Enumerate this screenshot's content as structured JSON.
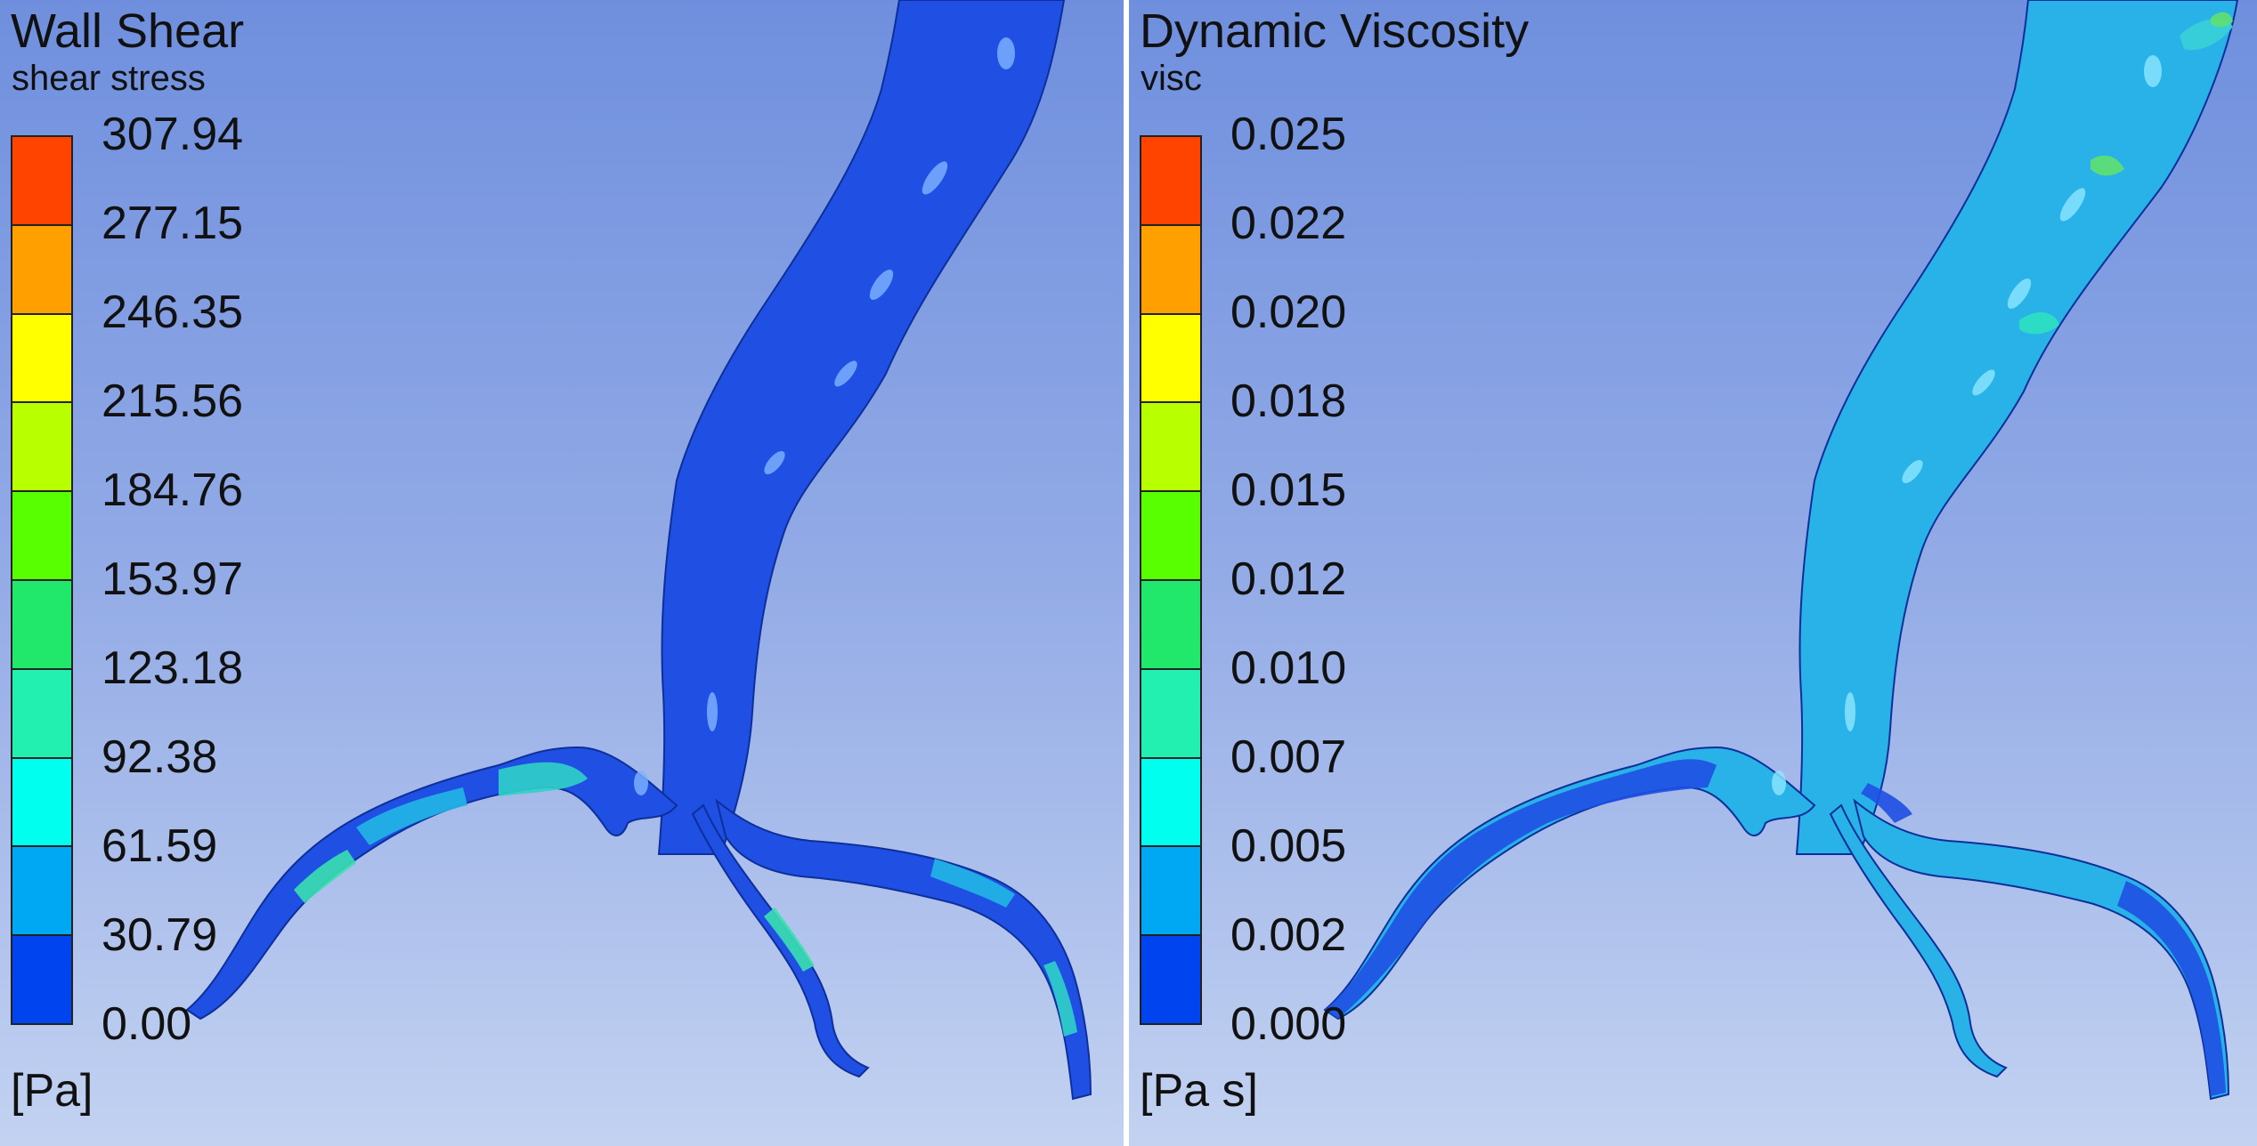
{
  "panels": [
    {
      "title": "Wall Shear",
      "subtitle": "shear stress",
      "unit": "[Pa]",
      "ticks": [
        "307.94",
        "277.15",
        "246.35",
        "215.56",
        "184.76",
        "153.97",
        "123.18",
        "92.38",
        "61.59",
        "30.79",
        "0.00"
      ],
      "body_color": "#1f4fe3",
      "highlight_color": "#7fb4ff",
      "patch_colors": [
        "#2fd2c8",
        "#21b6e4",
        "#3ae0b0"
      ]
    },
    {
      "title": "Dynamic Viscosity",
      "subtitle": "visc",
      "unit": "[Pa s]",
      "ticks": [
        "0.025",
        "0.022",
        "0.020",
        "0.018",
        "0.015",
        "0.012",
        "0.010",
        "0.007",
        "0.005",
        "0.002",
        "0.000"
      ],
      "body_color": "#28b2e8",
      "highlight_color": "#8fe6ff",
      "patch_colors": [
        "#38d0d8",
        "#2ee0c0",
        "#5fe070",
        "#1f4fe3"
      ]
    }
  ],
  "colormap": [
    "#ff4400",
    "#ffa000",
    "#ffff00",
    "#b8ff00",
    "#57ff00",
    "#21e86a",
    "#22f0b0",
    "#00ffee",
    "#00a8f4",
    "#0044f0"
  ]
}
